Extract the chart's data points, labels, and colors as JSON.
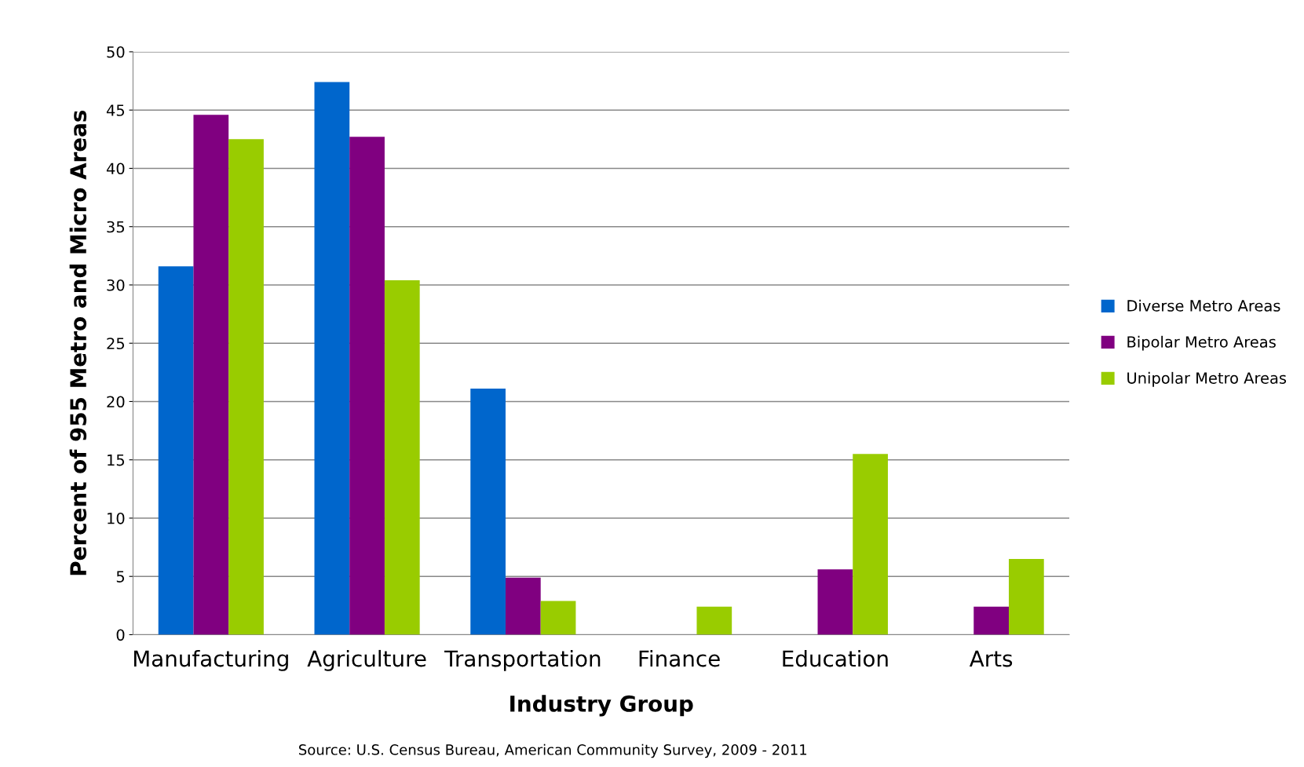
{
  "chart_data": {
    "type": "bar",
    "xlabel": "Industry Group",
    "ylabel": "Percent of 955 Metro and Micro Areas",
    "categories": [
      "Manufacturing",
      "Agriculture",
      "Transportation",
      "Finance",
      "Education",
      "Arts"
    ],
    "series": [
      {
        "name": "Diverse Metro Areas",
        "color": "#0066cc",
        "values": [
          31.6,
          47.4,
          21.1,
          0,
          0,
          0
        ]
      },
      {
        "name": "Bipolar Metro Areas",
        "color": "#800080",
        "values": [
          44.6,
          42.7,
          4.9,
          0,
          5.6,
          2.4
        ]
      },
      {
        "name": "Unipolar Metro Areas",
        "color": "#99cc00",
        "values": [
          42.5,
          30.4,
          2.9,
          2.4,
          15.5,
          6.5
        ]
      }
    ],
    "ylim": [
      0,
      50
    ],
    "yticks": [
      0,
      5,
      10,
      15,
      20,
      25,
      30,
      35,
      40,
      45,
      50
    ],
    "grid": "y",
    "legend": "right",
    "annotations": [
      "Source: U.S. Census Bureau, American Community Survey, 2009 - 2011"
    ]
  }
}
